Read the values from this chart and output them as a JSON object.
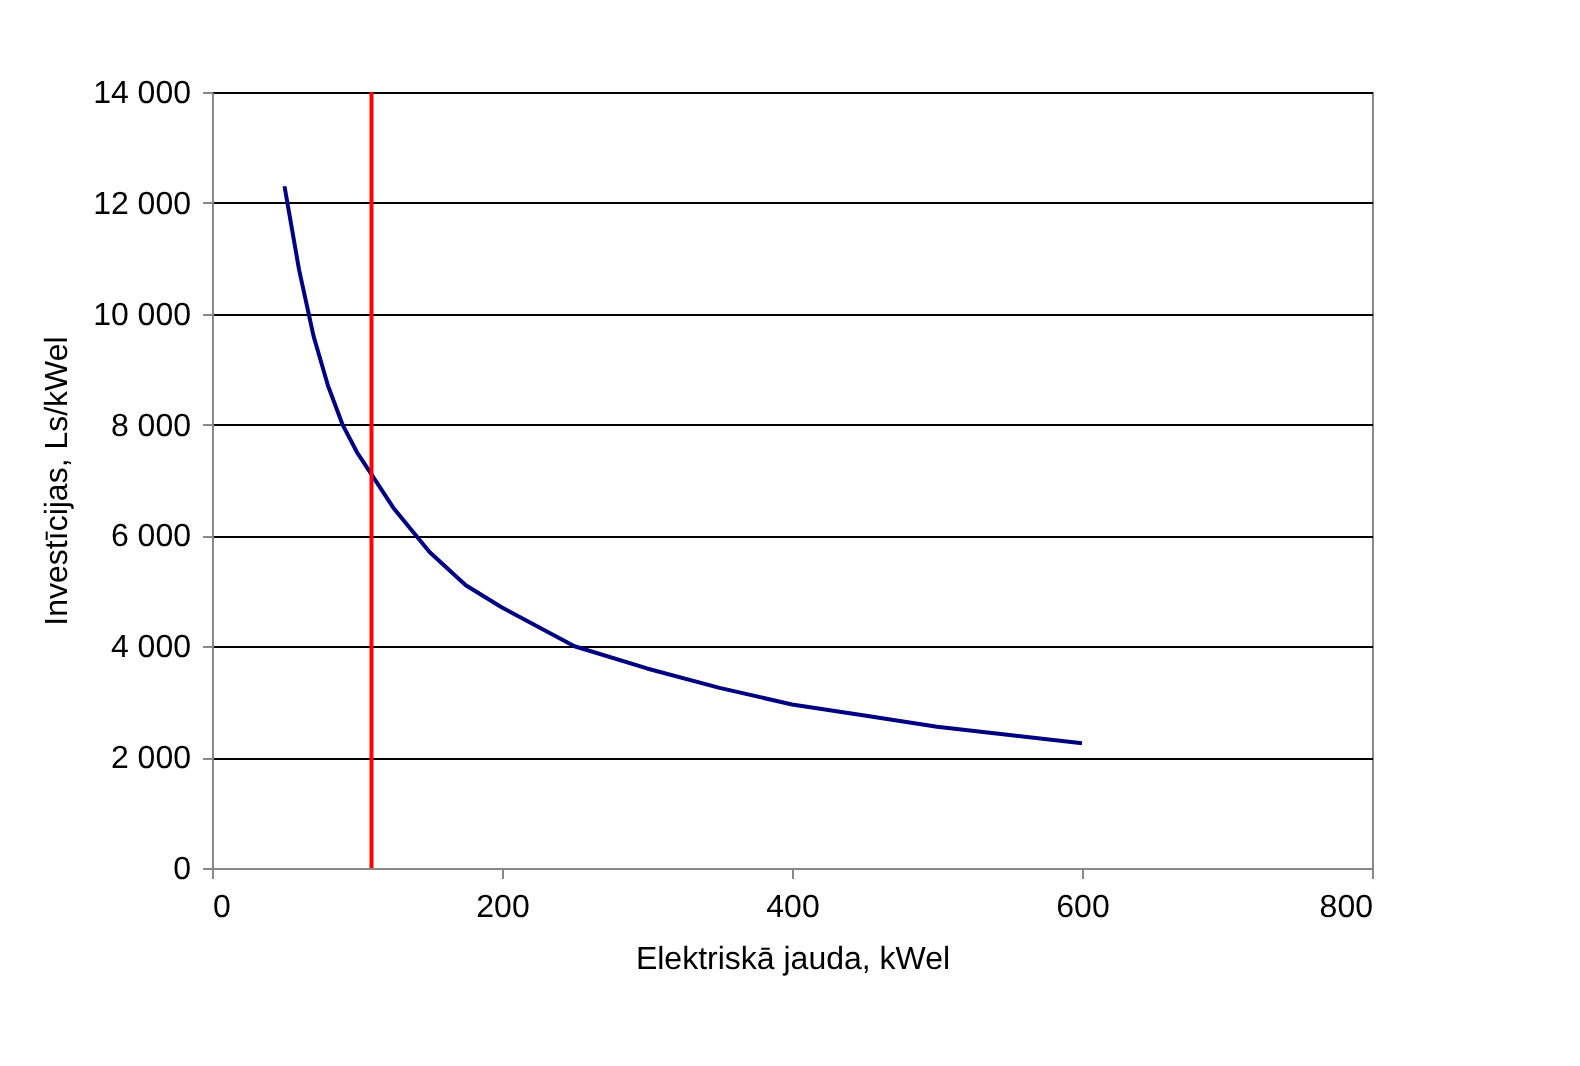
{
  "chart_data": {
    "type": "line",
    "xlabel": "Elektriskā jauda, kWel",
    "ylabel": "Investīcijas, Ls/kWel",
    "x": [
      50,
      60,
      70,
      80,
      90,
      100,
      110,
      125,
      150,
      175,
      200,
      250,
      300,
      350,
      400,
      450,
      500,
      550,
      600
    ],
    "series": [
      {
        "color": "#000080",
        "values": [
          12300,
          10800,
          9600,
          8700,
          8000,
          7500,
          7100,
          6500,
          5700,
          5100,
          4700,
          4000,
          3600,
          3250,
          2950,
          2750,
          2550,
          2400,
          2250
        ]
      }
    ],
    "xlim": [
      0,
      800
    ],
    "xticks": [
      0,
      200,
      400,
      600,
      800
    ],
    "ylim": [
      0,
      14000
    ],
    "yticks": [
      {
        "value": 0,
        "label": "0"
      },
      {
        "value": 2000,
        "label": "2 000"
      },
      {
        "value": 4000,
        "label": "4 000"
      },
      {
        "value": 6000,
        "label": "6 000"
      },
      {
        "value": 8000,
        "label": "8 000"
      },
      {
        "value": 10000,
        "label": "10 000"
      },
      {
        "value": 12000,
        "label": "12 000"
      },
      {
        "value": 14000,
        "label": "14 000"
      }
    ],
    "grid": "y",
    "marker": "none",
    "line_style": "solid",
    "ref_lines": [
      {
        "axis": "x",
        "value": 110,
        "color": "#ff0000"
      }
    ]
  }
}
